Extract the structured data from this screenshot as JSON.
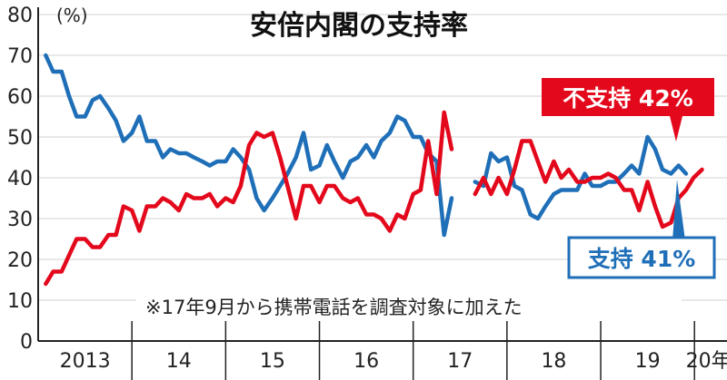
{
  "chart_data": {
    "type": "line",
    "title": "安倍内閣の支持率",
    "ylabel": "(%)",
    "ylim": [
      0,
      80
    ],
    "yticks": [
      {
        "label": "0",
        "value": 0
      },
      {
        "label": "10",
        "value": 10
      },
      {
        "label": "20",
        "value": 20
      },
      {
        "label": "30",
        "value": 30
      },
      {
        "label": "40",
        "value": 40
      },
      {
        "label": "50",
        "value": 50
      },
      {
        "label": "60",
        "value": 60
      },
      {
        "label": "70",
        "value": 70
      },
      {
        "label": "80",
        "value": 80
      }
    ],
    "xlim": [
      2013.0,
      2020.25
    ],
    "xticks": [
      {
        "label": "2013",
        "value": 2013.5
      },
      {
        "label": "14",
        "value": 2014.5
      },
      {
        "label": "15",
        "value": 2015.5
      },
      {
        "label": "16",
        "value": 2016.5
      },
      {
        "label": "17",
        "value": 2017.5
      },
      {
        "label": "18",
        "value": 2018.5
      },
      {
        "label": "19",
        "value": 2019.5
      },
      {
        "label": "20年",
        "value": 2020.15
      }
    ],
    "year_dividers": [
      2014.0,
      2015.0,
      2016.0,
      2017.0,
      2018.0,
      2019.0,
      2020.0
    ],
    "grid": true,
    "note": "※17年9月から携帯電話を調査対象に加えた",
    "series": [
      {
        "key": "support",
        "color": "#1f6fb8",
        "label_text": "支持 41%",
        "segments": [
          [
            [
              2013.08,
              70
            ],
            [
              2013.16,
              66
            ],
            [
              2013.25,
              66
            ],
            [
              2013.33,
              60
            ],
            [
              2013.41,
              55
            ],
            [
              2013.5,
              55
            ],
            [
              2013.58,
              59
            ],
            [
              2013.66,
              60
            ],
            [
              2013.75,
              57
            ],
            [
              2013.83,
              54
            ],
            [
              2013.91,
              49
            ],
            [
              2014.0,
              51
            ],
            [
              2014.08,
              55
            ],
            [
              2014.16,
              49
            ],
            [
              2014.25,
              49
            ],
            [
              2014.33,
              45
            ],
            [
              2014.41,
              47
            ],
            [
              2014.5,
              46
            ],
            [
              2014.58,
              46
            ],
            [
              2014.66,
              45
            ],
            [
              2014.75,
              44
            ],
            [
              2014.83,
              43
            ],
            [
              2014.91,
              44
            ],
            [
              2015.0,
              44
            ],
            [
              2015.08,
              47
            ],
            [
              2015.16,
              45
            ],
            [
              2015.25,
              42
            ],
            [
              2015.33,
              35
            ],
            [
              2015.41,
              32
            ],
            [
              2015.5,
              35
            ],
            [
              2015.58,
              38
            ],
            [
              2015.66,
              41
            ],
            [
              2015.75,
              45
            ],
            [
              2015.83,
              51
            ],
            [
              2015.91,
              42
            ],
            [
              2016.0,
              43
            ],
            [
              2016.08,
              48
            ],
            [
              2016.16,
              44
            ],
            [
              2016.25,
              40
            ],
            [
              2016.33,
              44
            ],
            [
              2016.41,
              45
            ],
            [
              2016.5,
              48
            ],
            [
              2016.58,
              45
            ],
            [
              2016.66,
              49
            ],
            [
              2016.75,
              51
            ],
            [
              2016.83,
              55
            ],
            [
              2016.91,
              54
            ],
            [
              2017.0,
              50
            ],
            [
              2017.08,
              50
            ],
            [
              2017.16,
              46
            ],
            [
              2017.25,
              44
            ],
            [
              2017.33,
              26
            ],
            [
              2017.41,
              35
            ]
          ],
          [
            [
              2017.66,
              39
            ],
            [
              2017.75,
              38
            ],
            [
              2017.83,
              46
            ],
            [
              2017.91,
              44
            ],
            [
              2018.0,
              45
            ],
            [
              2018.08,
              38
            ],
            [
              2018.16,
              37
            ],
            [
              2018.25,
              31
            ],
            [
              2018.33,
              30
            ],
            [
              2018.41,
              33
            ],
            [
              2018.5,
              36
            ],
            [
              2018.58,
              37
            ],
            [
              2018.66,
              37
            ],
            [
              2018.75,
              37
            ],
            [
              2018.83,
              41
            ],
            [
              2018.91,
              38
            ],
            [
              2019.0,
              38
            ],
            [
              2019.08,
              39
            ],
            [
              2019.16,
              39
            ],
            [
              2019.25,
              41
            ],
            [
              2019.33,
              43
            ],
            [
              2019.41,
              41
            ],
            [
              2019.5,
              50
            ],
            [
              2019.58,
              47
            ],
            [
              2019.66,
              42
            ],
            [
              2019.75,
              41
            ],
            [
              2019.83,
              43
            ],
            [
              2019.91,
              41
            ]
          ]
        ]
      },
      {
        "key": "nonsupport",
        "color": "#e3081b",
        "label_text": "不支持 42%",
        "segments": [
          [
            [
              2013.08,
              14
            ],
            [
              2013.16,
              17
            ],
            [
              2013.25,
              17
            ],
            [
              2013.33,
              21
            ],
            [
              2013.41,
              25
            ],
            [
              2013.5,
              25
            ],
            [
              2013.58,
              23
            ],
            [
              2013.66,
              23
            ],
            [
              2013.75,
              26
            ],
            [
              2013.83,
              26
            ],
            [
              2013.91,
              33
            ],
            [
              2014.0,
              32
            ],
            [
              2014.08,
              27
            ],
            [
              2014.16,
              33
            ],
            [
              2014.25,
              33
            ],
            [
              2014.33,
              35
            ],
            [
              2014.41,
              34
            ],
            [
              2014.5,
              32
            ],
            [
              2014.58,
              36
            ],
            [
              2014.66,
              35
            ],
            [
              2014.75,
              35
            ],
            [
              2014.83,
              36
            ],
            [
              2014.91,
              33
            ],
            [
              2015.0,
              35
            ],
            [
              2015.08,
              34
            ],
            [
              2015.16,
              38
            ],
            [
              2015.25,
              48
            ],
            [
              2015.33,
              51
            ],
            [
              2015.41,
              50
            ],
            [
              2015.5,
              51
            ],
            [
              2015.58,
              45
            ],
            [
              2015.66,
              38
            ],
            [
              2015.75,
              30
            ],
            [
              2015.83,
              38
            ],
            [
              2015.91,
              38
            ],
            [
              2016.0,
              34
            ],
            [
              2016.08,
              38
            ],
            [
              2016.16,
              38
            ],
            [
              2016.25,
              35
            ],
            [
              2016.33,
              34
            ],
            [
              2016.41,
              35
            ],
            [
              2016.5,
              31
            ],
            [
              2016.58,
              31
            ],
            [
              2016.66,
              30
            ],
            [
              2016.75,
              27
            ],
            [
              2016.83,
              31
            ],
            [
              2016.91,
              30
            ],
            [
              2017.0,
              36
            ],
            [
              2017.08,
              37
            ],
            [
              2017.16,
              49
            ],
            [
              2017.25,
              36
            ],
            [
              2017.33,
              56
            ],
            [
              2017.41,
              47
            ]
          ],
          [
            [
              2017.66,
              36
            ],
            [
              2017.75,
              40
            ],
            [
              2017.83,
              36
            ],
            [
              2017.91,
              40
            ],
            [
              2018.0,
              36
            ],
            [
              2018.08,
              42
            ],
            [
              2018.16,
              49
            ],
            [
              2018.25,
              49
            ],
            [
              2018.33,
              44
            ],
            [
              2018.41,
              39
            ],
            [
              2018.5,
              44
            ],
            [
              2018.58,
              40
            ],
            [
              2018.66,
              42
            ],
            [
              2018.75,
              39
            ],
            [
              2018.83,
              39
            ],
            [
              2018.91,
              40
            ],
            [
              2019.0,
              40
            ],
            [
              2019.08,
              41
            ],
            [
              2019.16,
              40
            ],
            [
              2019.25,
              37
            ],
            [
              2019.33,
              37
            ],
            [
              2019.41,
              32
            ],
            [
              2019.5,
              39
            ],
            [
              2019.58,
              33
            ],
            [
              2019.66,
              28
            ],
            [
              2019.75,
              29
            ],
            [
              2019.83,
              35
            ],
            [
              2019.91,
              37
            ],
            [
              2019.99,
              40
            ],
            [
              2020.08,
              42
            ]
          ]
        ]
      }
    ]
  }
}
